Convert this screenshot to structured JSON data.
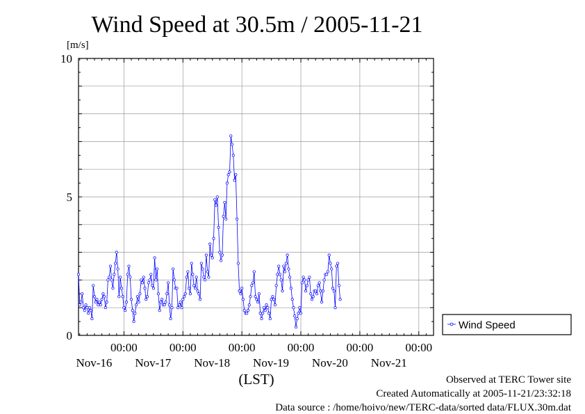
{
  "chart_data": {
    "type": "line",
    "title": "Wind Speed at 30.5m / 2005-11-21",
    "ylabel": "[m/s]",
    "xlabel": "(LST)",
    "ylim": [
      0,
      10
    ],
    "yticks": [
      0,
      5,
      10
    ],
    "x_unit": "hours from start of Nov-16",
    "xlim": [
      -18.5,
      126
    ],
    "midnight_ticks": [
      {
        "time": "00:00",
        "date": "Nov-16"
      },
      {
        "time": "00:00",
        "date": "Nov-17"
      },
      {
        "time": "00:00",
        "date": "Nov-18"
      },
      {
        "time": "00:00",
        "date": "Nov-19"
      },
      {
        "time": "00:00",
        "date": "Nov-20"
      },
      {
        "time": "00:00",
        "date": "Nov-21"
      }
    ],
    "grid": true,
    "legend_position": "right",
    "series": [
      {
        "name": "Wind Speed",
        "color": "#0000ff",
        "x_start": -18.5,
        "x_step": 0.5,
        "values": [
          2.2,
          1.1,
          1.2,
          1.5,
          1.0,
          0.9,
          1.1,
          1.0,
          0.8,
          1.0,
          0.9,
          0.6,
          1.8,
          1.4,
          1.2,
          1.3,
          1.1,
          1.2,
          1.1,
          1.3,
          1.5,
          1.4,
          1.0,
          1.2,
          2.0,
          2.1,
          2.5,
          2.0,
          1.7,
          2.2,
          2.6,
          3.0,
          2.4,
          1.4,
          2.1,
          1.7,
          1.4,
          1.0,
          0.9,
          1.2,
          2.2,
          2.5,
          2.1,
          1.3,
          0.9,
          0.5,
          0.8,
          1.1,
          1.4,
          1.2,
          1.5,
          2.0,
          1.9,
          2.1,
          1.7,
          1.3,
          1.4,
          1.9,
          2.0,
          2.2,
          1.8,
          1.7,
          2.8,
          2.0,
          2.4,
          1.5,
          0.9,
          1.2,
          1.3,
          1.1,
          1.1,
          1.2,
          1.5,
          1.9,
          1.1,
          0.6,
          1.0,
          2.4,
          2.0,
          1.7,
          1.7,
          1.0,
          1.1,
          1.2,
          1.0,
          1.3,
          1.4,
          1.5,
          2.1,
          2.3,
          1.7,
          1.5,
          2.6,
          2.2,
          1.8,
          1.7,
          2.1,
          1.6,
          1.5,
          1.3,
          2.6,
          2.4,
          2.1,
          2.0,
          2.9,
          2.3,
          2.1,
          3.3,
          2.9,
          2.8,
          3.5,
          4.9,
          4.7,
          5.0,
          3.9,
          3.0,
          2.7,
          2.9,
          4.3,
          4.8,
          4.2,
          5.5,
          5.8,
          5.9,
          7.2,
          6.9,
          6.5,
          5.6,
          5.8,
          4.2,
          2.6,
          1.6,
          1.5,
          1.7,
          1.3,
          0.9,
          0.8,
          0.8,
          0.9,
          1.1,
          1.4,
          1.8,
          1.9,
          2.3,
          1.4,
          1.3,
          1.2,
          1.5,
          0.8,
          0.6,
          0.8,
          1.0,
          0.9,
          1.1,
          1.0,
          0.8,
          0.6,
          1.3,
          1.4,
          1.3,
          1.1,
          1.8,
          2.2,
          2.5,
          2.2,
          2.0,
          1.6,
          2.5,
          2.3,
          2.6,
          2.9,
          2.4,
          2.1,
          1.7,
          1.3,
          1.0,
          0.7,
          0.3,
          0.6,
          0.8,
          1.0,
          0.8,
          1.9,
          2.1,
          2.0,
          1.6,
          1.8,
          2.0,
          2.1,
          1.5,
          1.3,
          1.4,
          1.6,
          1.6,
          1.5,
          1.8,
          1.9,
          1.6,
          1.2,
          1.6,
          2.0,
          2.2,
          2.2,
          2.3,
          2.9,
          2.6,
          2.4,
          1.7,
          1.6,
          1.0,
          2.5,
          2.6,
          1.8,
          1.3
        ]
      }
    ]
  },
  "footer": {
    "line1": "Observed at TERC Tower site",
    "line2": "Created Automatically at 2005-11-21/23:32:18",
    "line3": "Data source : /home/hoivo/new/TERC-data/sorted data/FLUX.30m.dat"
  }
}
